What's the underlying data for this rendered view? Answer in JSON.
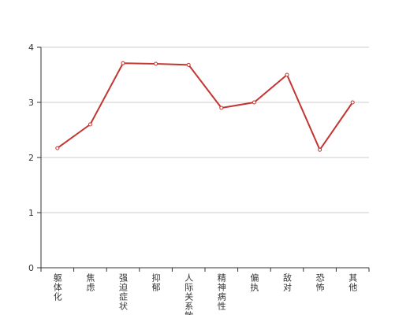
{
  "chart_data": {
    "type": "line",
    "categories": [
      "躯体化",
      "焦虑",
      "强迫症状",
      "抑郁",
      "人际关系敏感",
      "精神病性",
      "偏执",
      "敌对",
      "恐怖",
      "其他"
    ],
    "series": [
      {
        "color": "#c23531",
        "values": [
          2.17,
          2.6,
          3.71,
          3.7,
          3.68,
          2.9,
          3.0,
          3.5,
          2.14,
          3.0
        ]
      }
    ],
    "ylim": [
      0,
      4
    ],
    "yticks": [
      0,
      1,
      2,
      3,
      4
    ],
    "grid": true
  }
}
